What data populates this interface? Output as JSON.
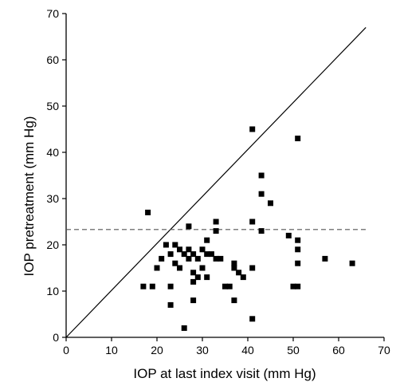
{
  "chart_data": {
    "type": "scatter",
    "xlabel": "IOP at last index visit (mm Hg)",
    "ylabel": "IOP pretreatment (mm Hg)",
    "xlim": [
      0,
      70
    ],
    "ylim": [
      0,
      70
    ],
    "xticks": [
      0,
      10,
      20,
      30,
      40,
      50,
      60,
      70
    ],
    "yticks": [
      0,
      10,
      20,
      30,
      40,
      50,
      60,
      70
    ],
    "grid": false,
    "reference_lines": [
      {
        "kind": "identity",
        "style": "solid",
        "from": [
          0,
          0
        ],
        "to": [
          66,
          67
        ]
      },
      {
        "kind": "horizontal",
        "style": "dashed",
        "y": 23.3,
        "x_from": 0,
        "x_to": 66
      }
    ],
    "series": [
      {
        "marker": "square",
        "points": [
          [
            17,
            11
          ],
          [
            18,
            27
          ],
          [
            19,
            11
          ],
          [
            20,
            15
          ],
          [
            21,
            17
          ],
          [
            22,
            20
          ],
          [
            23,
            7
          ],
          [
            23,
            11
          ],
          [
            23,
            18
          ],
          [
            24,
            16
          ],
          [
            24,
            20
          ],
          [
            25,
            15
          ],
          [
            25,
            19
          ],
          [
            26,
            2
          ],
          [
            26,
            18
          ],
          [
            27,
            17
          ],
          [
            27,
            19
          ],
          [
            27,
            24
          ],
          [
            28,
            8
          ],
          [
            28,
            12
          ],
          [
            28,
            14
          ],
          [
            28,
            18
          ],
          [
            29,
            13
          ],
          [
            29,
            17
          ],
          [
            30,
            15
          ],
          [
            30,
            19
          ],
          [
            31,
            13
          ],
          [
            31,
            18
          ],
          [
            31,
            21
          ],
          [
            32,
            18
          ],
          [
            33,
            17
          ],
          [
            33,
            23
          ],
          [
            33,
            25
          ],
          [
            34,
            17
          ],
          [
            35,
            11
          ],
          [
            36,
            11
          ],
          [
            37,
            8
          ],
          [
            37,
            15
          ],
          [
            37,
            16
          ],
          [
            38,
            14
          ],
          [
            39,
            13
          ],
          [
            41,
            4
          ],
          [
            41,
            15
          ],
          [
            41,
            25
          ],
          [
            41,
            45
          ],
          [
            43,
            23
          ],
          [
            43,
            31
          ],
          [
            43,
            35
          ],
          [
            45,
            29
          ],
          [
            49,
            22
          ],
          [
            50,
            11
          ],
          [
            51,
            11
          ],
          [
            51,
            16
          ],
          [
            51,
            19
          ],
          [
            51,
            21
          ],
          [
            51,
            43
          ],
          [
            57,
            17
          ],
          [
            63,
            16
          ]
        ]
      }
    ]
  }
}
